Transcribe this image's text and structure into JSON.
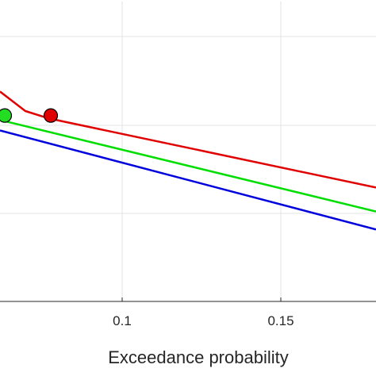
{
  "chart_data": {
    "type": "line",
    "title": "",
    "xlabel": "Exceedance probability",
    "ylabel": "",
    "xlim": [
      0.0615,
      0.18
    ],
    "ylim": [
      0.0,
      1.0
    ],
    "x_ticks": [
      0.1,
      0.15
    ],
    "x_tick_labels": [
      "0.1",
      "0.15"
    ],
    "grid": true,
    "series": [
      {
        "color": "#e00000",
        "x": [
          0.0615,
          0.0695,
          0.077,
          0.18
        ],
        "y": [
          0.7,
          0.635,
          0.61,
          0.38
        ],
        "marker": {
          "x": 0.0775,
          "y": 0.62,
          "color": "#e00000"
        }
      },
      {
        "color": "#00dd00",
        "x": [
          0.0635,
          0.18
        ],
        "y": [
          0.6,
          0.3
        ],
        "marker": {
          "x": 0.063,
          "y": 0.62,
          "color": "#22dd22"
        }
      },
      {
        "color": "#0000dd",
        "x": [
          0.0615,
          0.18
        ],
        "y": [
          0.57,
          0.24
        ],
        "marker": null
      }
    ]
  }
}
